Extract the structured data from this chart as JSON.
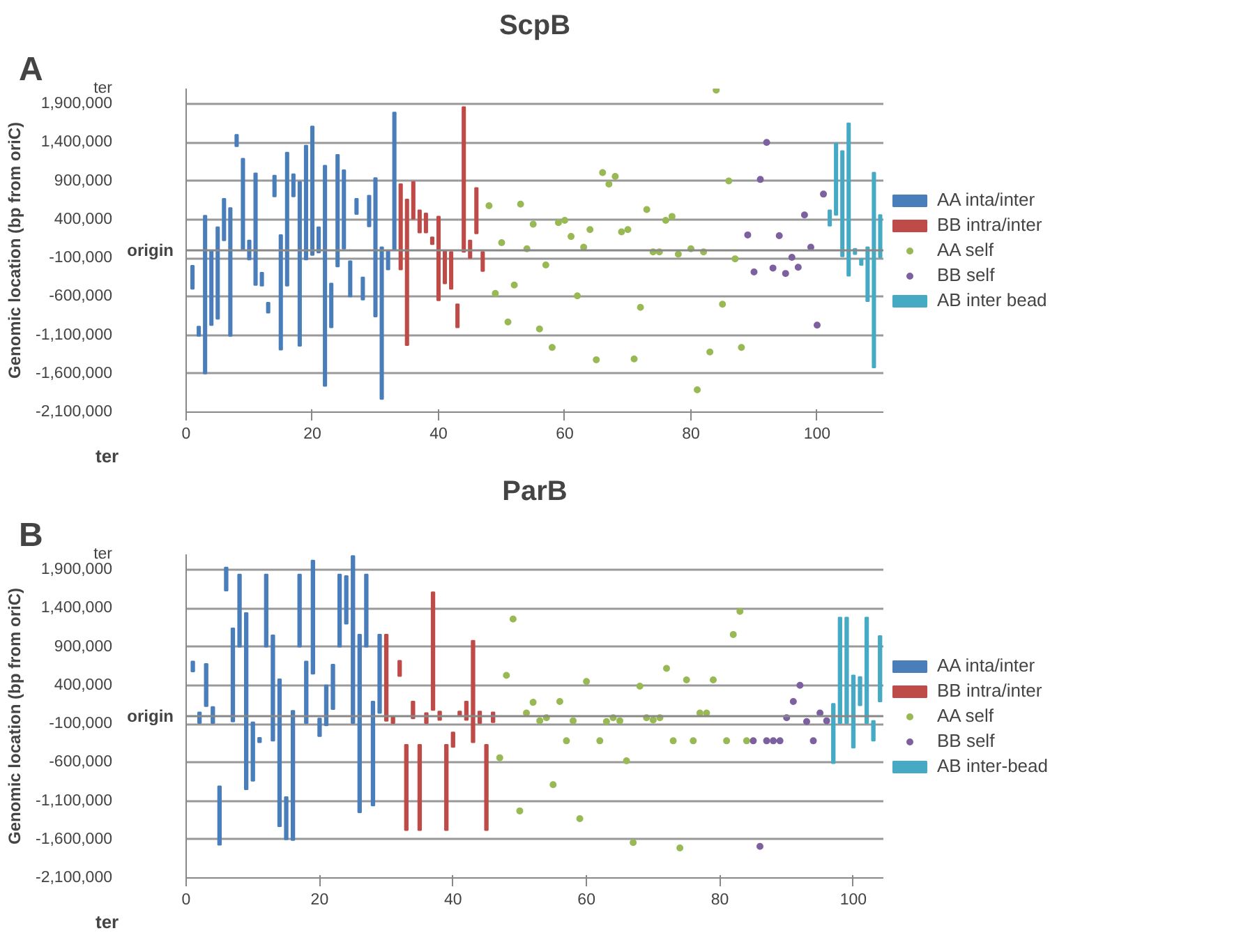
{
  "chart_data": [
    {
      "type": "bar",
      "title": "ScpB",
      "annotations": [
        "A",
        "ter"
      ],
      "ref_lines": [
        {
          "axis": "y",
          "value": 0,
          "label": "origin"
        }
      ],
      "ylabel": "Genomic location (bp from oriC)",
      "xlim": [
        0,
        110.5
      ],
      "ylim": [
        -2100000,
        2100000
      ],
      "xticks": [
        0,
        20,
        40,
        60,
        80,
        100
      ],
      "yticks": [
        {
          "value": -2100000,
          "label": "-2,100,000"
        },
        {
          "value": -1600000,
          "label": "-1,600,000"
        },
        {
          "value": -1100000,
          "label": "-1,100,000"
        },
        {
          "value": -600000,
          "label": "-600,000"
        },
        {
          "value": -100000,
          "label": "-100,000"
        },
        {
          "value": 400000,
          "label": "400,000"
        },
        {
          "value": 900000,
          "label": "900,000"
        },
        {
          "value": 1400000,
          "label": "1,400,000"
        },
        {
          "value": 1900000,
          "label": "1,900,000"
        },
        {
          "value": 2100000,
          "label": "ter"
        }
      ],
      "grid": "y",
      "legend": "right",
      "marker": "circle",
      "series": [
        {
          "name": "AA inta/inter",
          "color": "#4a7ebb",
          "x": [
            1,
            2,
            3,
            4,
            5,
            6,
            7,
            8,
            9,
            10,
            11,
            12,
            13,
            14,
            15,
            16,
            17,
            18,
            19,
            20,
            21,
            22,
            23,
            24,
            25,
            26,
            27,
            28,
            29,
            30,
            31,
            32,
            33
          ],
          "base": [
            -500000,
            -1110000,
            -1600000,
            -970000,
            -890000,
            130000,
            -1110000,
            1350000,
            0,
            -120000,
            -450000,
            -460000,
            -810000,
            700000,
            -1290000,
            -460000,
            700000,
            -1240000,
            -120000,
            -60000,
            -30000,
            -1760000,
            -1000000,
            -210000,
            20000,
            -600000,
            470000,
            -640000,
            310000,
            -860000,
            -1930000,
            -250000,
            0
          ],
          "values": [
            300000,
            120000,
            2050000,
            970000,
            1190000,
            540000,
            1660000,
            150000,
            1190000,
            250000,
            1450000,
            170000,
            130000,
            270000,
            1490000,
            1730000,
            290000,
            2130000,
            1480000,
            1670000,
            330000,
            2860000,
            570000,
            1450000,
            1020000,
            460000,
            200000,
            290000,
            400000,
            1800000,
            1970000,
            250000,
            1790000
          ]
        },
        {
          "name": "BB intra/inter",
          "color": "#be4b48",
          "x": [
            34,
            35,
            36,
            37,
            38,
            39,
            40,
            41,
            42,
            43,
            44,
            45,
            46,
            47
          ],
          "base": [
            -250000,
            -1230000,
            410000,
            230000,
            230000,
            80000,
            -650000,
            -430000,
            -500000,
            -1000000,
            -20000,
            -100000,
            220000,
            -270000
          ],
          "values": [
            1110000,
            1890000,
            480000,
            290000,
            250000,
            90000,
            1090000,
            430000,
            480000,
            300000,
            1880000,
            230000,
            590000,
            250000
          ]
        },
        {
          "name": "AA self",
          "color": "#98b954",
          "type": "scatter",
          "x": [
            48,
            49,
            50,
            51,
            52,
            53,
            54,
            55,
            56,
            57,
            58,
            59,
            60,
            61,
            62,
            63,
            64,
            65,
            66,
            67,
            68,
            69,
            70,
            71,
            72,
            73,
            74,
            75,
            76,
            77,
            78,
            80,
            81,
            82,
            83,
            84,
            85,
            86,
            87,
            88
          ],
          "values": [
            580000,
            -560000,
            100000,
            -930000,
            -450000,
            600000,
            20000,
            340000,
            -1020000,
            -190000,
            -1260000,
            360000,
            390000,
            180000,
            -590000,
            40000,
            270000,
            -1420000,
            1010000,
            860000,
            960000,
            240000,
            270000,
            -1410000,
            -740000,
            530000,
            -20000,
            -20000,
            390000,
            440000,
            -50000,
            20000,
            -1810000,
            -20000,
            -1320000,
            2080000,
            -700000,
            900000,
            -110000,
            -1260000
          ]
        },
        {
          "name": "BB self",
          "color": "#7d60a0",
          "type": "scatter",
          "x": [
            89,
            90,
            91,
            92,
            93,
            94,
            95,
            96,
            97,
            98,
            99,
            100,
            101
          ],
          "values": [
            200000,
            -280000,
            920000,
            1400000,
            -230000,
            190000,
            -300000,
            -90000,
            -220000,
            460000,
            40000,
            -970000,
            730000
          ]
        },
        {
          "name": "AB inter bead",
          "color": "#46aac5",
          "x": [
            102,
            103,
            104,
            105,
            106,
            107,
            108,
            109,
            110
          ],
          "base": [
            320000,
            460000,
            -80000,
            -330000,
            -50000,
            -190000,
            -660000,
            -1520000,
            -90000
          ],
          "values": [
            200000,
            930000,
            1370000,
            1980000,
            70000,
            80000,
            700000,
            2530000,
            550000
          ]
        }
      ]
    },
    {
      "type": "bar",
      "title": "ParB",
      "annotations": [
        "B",
        "ter"
      ],
      "ref_lines": [
        {
          "axis": "y",
          "value": 0,
          "label": "origin"
        }
      ],
      "ylabel": "Genomic location (bp from oriC)",
      "xlim": [
        0,
        104.5
      ],
      "ylim": [
        -2100000,
        2100000
      ],
      "xticks": [
        0,
        20,
        40,
        60,
        80,
        100
      ],
      "yticks": [
        {
          "value": -2100000,
          "label": "-2,100,000"
        },
        {
          "value": -1600000,
          "label": "-1,600,000"
        },
        {
          "value": -1100000,
          "label": "-1,100,000"
        },
        {
          "value": -600000,
          "label": "-600,000"
        },
        {
          "value": -100000,
          "label": "-100,000"
        },
        {
          "value": 400000,
          "label": "400,000"
        },
        {
          "value": 900000,
          "label": "900,000"
        },
        {
          "value": 1400000,
          "label": "1,400,000"
        },
        {
          "value": 1900000,
          "label": "1,900,000"
        },
        {
          "value": 2100000,
          "label": "ter"
        }
      ],
      "grid": "y",
      "legend": "right",
      "marker": "circle",
      "series": [
        {
          "name": "AA inta/inter",
          "color": "#4a7ebb",
          "x": [
            1,
            2,
            3,
            4,
            5,
            6,
            7,
            8,
            9,
            10,
            11,
            12,
            13,
            14,
            15,
            16,
            17,
            18,
            19,
            20,
            21,
            22,
            23,
            24,
            25,
            26,
            27,
            28,
            29
          ],
          "base": [
            580000,
            -90000,
            130000,
            -90000,
            -1670000,
            1630000,
            -70000,
            900000,
            -950000,
            -840000,
            -340000,
            900000,
            -320000,
            -1430000,
            -1600000,
            -1610000,
            900000,
            -90000,
            550000,
            -260000,
            -120000,
            90000,
            900000,
            1200000,
            -90000,
            -1250000,
            900000,
            -1160000,
            40000
          ],
          "values": [
            130000,
            140000,
            550000,
            210000,
            760000,
            300000,
            1210000,
            940000,
            2290000,
            760000,
            60000,
            940000,
            1370000,
            1910000,
            550000,
            1680000,
            940000,
            800000,
            1470000,
            230000,
            520000,
            580000,
            940000,
            620000,
            2170000,
            2310000,
            940000,
            1350000,
            1020000
          ]
        },
        {
          "name": "BB intra/inter",
          "color": "#be4b48",
          "x": [
            30,
            31,
            32,
            33,
            34,
            35,
            36,
            37,
            38,
            39,
            40,
            41,
            42,
            43,
            44,
            45,
            46
          ],
          "base": [
            -60000,
            -90000,
            520000,
            -1480000,
            -30000,
            -1480000,
            -90000,
            80000,
            -50000,
            -1480000,
            -400000,
            0,
            -50000,
            -340000,
            -90000,
            -1480000,
            -80000
          ],
          "values": [
            1120000,
            80000,
            200000,
            1110000,
            220000,
            1110000,
            130000,
            1530000,
            110000,
            1110000,
            190000,
            60000,
            240000,
            1320000,
            150000,
            1110000,
            130000
          ]
        },
        {
          "name": "AA self",
          "color": "#98b954",
          "type": "scatter",
          "x": [
            47,
            48,
            49,
            50,
            51,
            52,
            53,
            54,
            55,
            56,
            57,
            58,
            59,
            60,
            62,
            63,
            64,
            65,
            66,
            67,
            68,
            69,
            70,
            71,
            72,
            73,
            74,
            75,
            76,
            77,
            78,
            79,
            81,
            82,
            83,
            84
          ],
          "values": [
            -540000,
            530000,
            1260000,
            -1230000,
            40000,
            180000,
            -60000,
            -20000,
            -890000,
            190000,
            -320000,
            -60000,
            -1330000,
            450000,
            -320000,
            -70000,
            -20000,
            -60000,
            -580000,
            -1640000,
            390000,
            -20000,
            -50000,
            -20000,
            620000,
            -320000,
            -1710000,
            470000,
            -320000,
            40000,
            40000,
            470000,
            -320000,
            1060000,
            1360000,
            -320000
          ]
        },
        {
          "name": "BB self",
          "color": "#7d60a0",
          "type": "scatter",
          "x": [
            85,
            86,
            87,
            88,
            89,
            90,
            91,
            92,
            93,
            94,
            95,
            96
          ],
          "values": [
            -320000,
            -1690000,
            -320000,
            -320000,
            -320000,
            -20000,
            190000,
            400000,
            -70000,
            -320000,
            40000,
            -60000
          ]
        },
        {
          "name": "AB inter-bead",
          "color": "#46aac5",
          "x": [
            97,
            98,
            99,
            100,
            101,
            102,
            103,
            104
          ],
          "base": [
            -610000,
            -90000,
            -90000,
            -410000,
            140000,
            -90000,
            -320000,
            190000
          ],
          "values": [
            770000,
            1370000,
            1370000,
            940000,
            370000,
            1370000,
            260000,
            850000
          ]
        }
      ]
    }
  ]
}
